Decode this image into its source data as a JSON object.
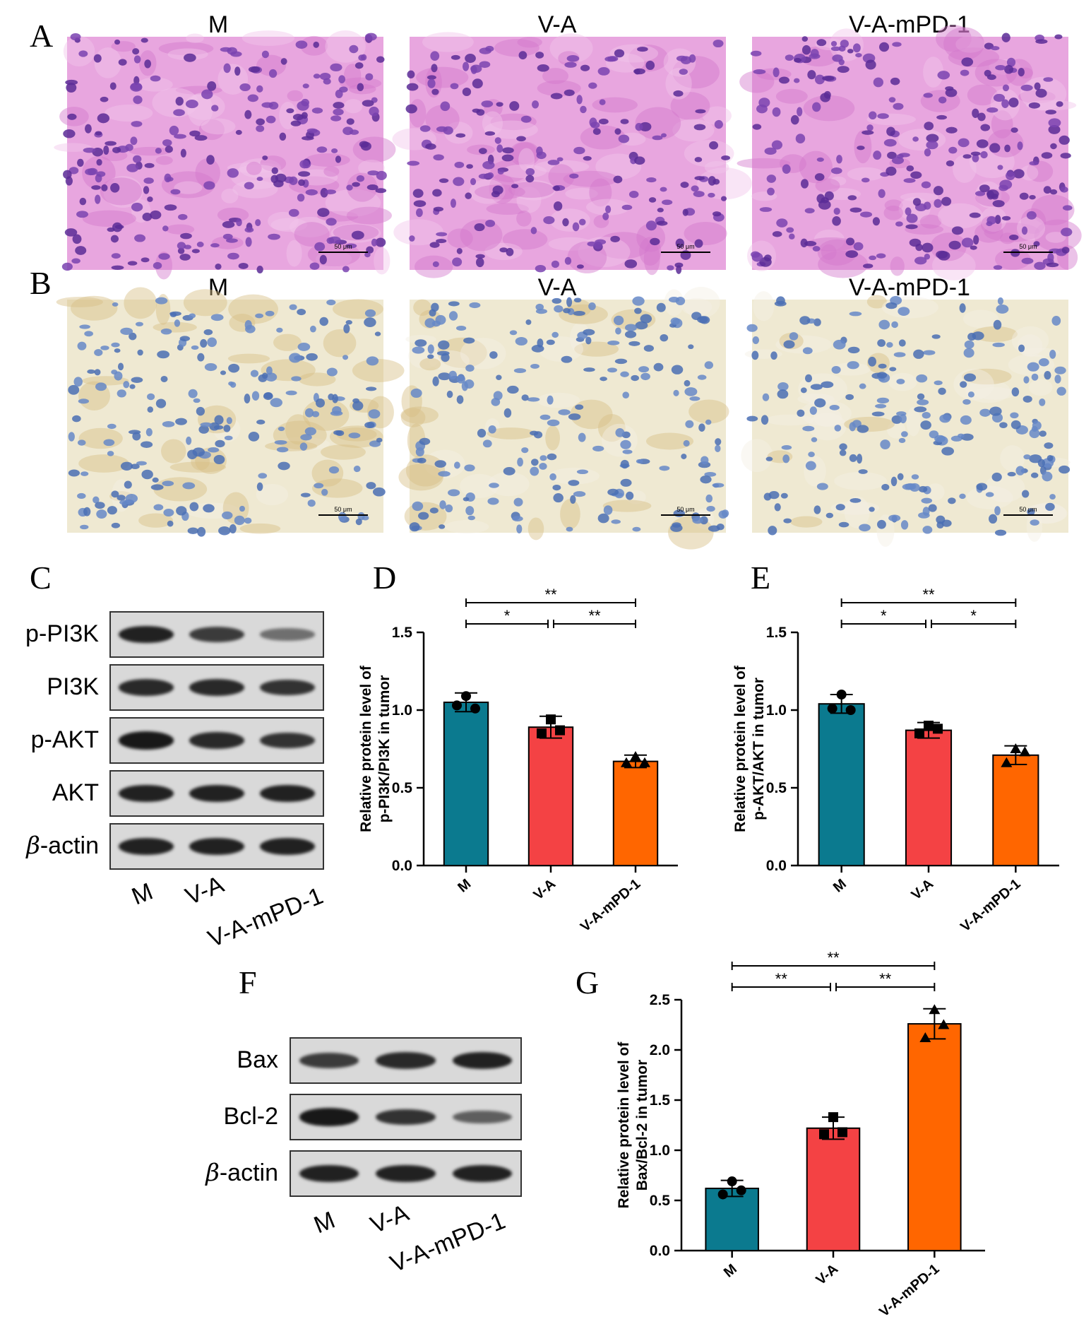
{
  "panels": {
    "A": {
      "label": "A",
      "images": [
        {
          "title": "M",
          "stain": "he",
          "scale_text": "50 μm",
          "density": 1.0
        },
        {
          "title": "V-A",
          "stain": "he",
          "scale_text": "50 μm",
          "density": 0.8
        },
        {
          "title": "V-A-mPD-1",
          "stain": "he",
          "scale_text": "50 μm",
          "density": 1.0
        }
      ]
    },
    "B": {
      "label": "B",
      "images": [
        {
          "title": "M",
          "stain": "ihc",
          "scale_text": "50 μm",
          "brown_level": 0.9
        },
        {
          "title": "V-A",
          "stain": "ihc",
          "scale_text": "50 μm",
          "brown_level": 0.5
        },
        {
          "title": "V-A-mPD-1",
          "stain": "ihc",
          "scale_text": "50 μm",
          "brown_level": 0.1
        }
      ]
    },
    "C": {
      "label": "C",
      "rows": [
        {
          "label_prefix": "",
          "label_text": "p-PI3K",
          "band_intensity": [
            0.9,
            0.75,
            0.45
          ]
        },
        {
          "label_prefix": "",
          "label_text": "PI3K",
          "band_intensity": [
            0.85,
            0.85,
            0.8
          ]
        },
        {
          "label_prefix": "",
          "label_text": "p-AKT",
          "band_intensity": [
            0.95,
            0.85,
            0.8
          ]
        },
        {
          "label_prefix": "",
          "label_text": "AKT",
          "band_intensity": [
            0.9,
            0.9,
            0.9
          ]
        },
        {
          "label_prefix": "β",
          "label_text": "-actin",
          "band_intensity": [
            0.9,
            0.9,
            0.9
          ]
        }
      ],
      "lanes": [
        "M",
        "V-A",
        "V-A-mPD-1"
      ]
    },
    "F": {
      "label": "F",
      "rows": [
        {
          "label_prefix": "",
          "label_text": "Bax",
          "band_intensity": [
            0.75,
            0.85,
            0.9
          ]
        },
        {
          "label_prefix": "",
          "label_text": "Bcl-2",
          "band_intensity": [
            0.95,
            0.8,
            0.55
          ]
        },
        {
          "label_prefix": "β",
          "label_text": "-actin",
          "band_intensity": [
            0.9,
            0.9,
            0.9
          ]
        }
      ],
      "lanes": [
        "M",
        "V-A",
        "V-A-mPD-1"
      ]
    },
    "D": {
      "label": "D"
    },
    "E": {
      "label": "E"
    },
    "G": {
      "label": "G"
    }
  },
  "chart_data": [
    {
      "id": "D",
      "type": "bar",
      "categories": [
        "M",
        "V-A",
        "V-A-mPD-1"
      ],
      "values": [
        1.05,
        0.89,
        0.67
      ],
      "errors": [
        0.06,
        0.07,
        0.04
      ],
      "points": [
        [
          1.03,
          1.01,
          1.09
        ],
        [
          0.85,
          0.87,
          0.94
        ],
        [
          0.66,
          0.66,
          0.7
        ]
      ],
      "markers": [
        "circle",
        "square",
        "triangle"
      ],
      "colors": [
        "#0b7a8f",
        "#f44244",
        "#ff6600"
      ],
      "ylabel_lines": [
        "Relative protein level of",
        "p-PI3K/PI3K in tumor"
      ],
      "ylim": [
        0,
        1.5
      ],
      "yticks": [
        "0.0",
        "0.5",
        "1.0",
        "1.5"
      ],
      "brackets": [
        {
          "from": 0,
          "to": 2,
          "label": "**"
        },
        {
          "from": 0,
          "to": 1,
          "label": "*"
        },
        {
          "from": 1,
          "to": 2,
          "label": "**"
        }
      ]
    },
    {
      "id": "E",
      "type": "bar",
      "categories": [
        "M",
        "V-A",
        "V-A-mPD-1"
      ],
      "values": [
        1.04,
        0.87,
        0.71
      ],
      "errors": [
        0.06,
        0.05,
        0.06
      ],
      "points": [
        [
          1.01,
          1.0,
          1.1
        ],
        [
          0.85,
          0.88,
          0.9
        ],
        [
          0.66,
          0.73,
          0.75
        ]
      ],
      "markers": [
        "circle",
        "square",
        "triangle"
      ],
      "colors": [
        "#0b7a8f",
        "#f44244",
        "#ff6600"
      ],
      "ylabel_lines": [
        "Relative protein level of",
        "p-AKT/AKT in tumor"
      ],
      "ylim": [
        0,
        1.5
      ],
      "yticks": [
        "0.0",
        "0.5",
        "1.0",
        "1.5"
      ],
      "brackets": [
        {
          "from": 0,
          "to": 2,
          "label": "**"
        },
        {
          "from": 0,
          "to": 1,
          "label": "*"
        },
        {
          "from": 1,
          "to": 2,
          "label": "*"
        }
      ]
    },
    {
      "id": "G",
      "type": "bar",
      "categories": [
        "M",
        "V-A",
        "V-A-mPD-1"
      ],
      "values": [
        0.62,
        1.22,
        2.26
      ],
      "errors": [
        0.08,
        0.11,
        0.15
      ],
      "points": [
        [
          0.56,
          0.6,
          0.69
        ],
        [
          1.16,
          1.18,
          1.33
        ],
        [
          2.12,
          2.25,
          2.4
        ]
      ],
      "markers": [
        "circle",
        "square",
        "triangle"
      ],
      "colors": [
        "#0b7a8f",
        "#f44244",
        "#ff6600"
      ],
      "ylabel_lines": [
        "Relative protein level of",
        "Bax/Bcl-2 in tumor"
      ],
      "ylim": [
        0,
        2.5
      ],
      "yticks": [
        "0.0",
        "0.5",
        "1.0",
        "1.5",
        "2.0",
        "2.5"
      ],
      "brackets": [
        {
          "from": 0,
          "to": 2,
          "label": "**"
        },
        {
          "from": 0,
          "to": 1,
          "label": "**"
        },
        {
          "from": 1,
          "to": 2,
          "label": "**"
        }
      ]
    }
  ]
}
